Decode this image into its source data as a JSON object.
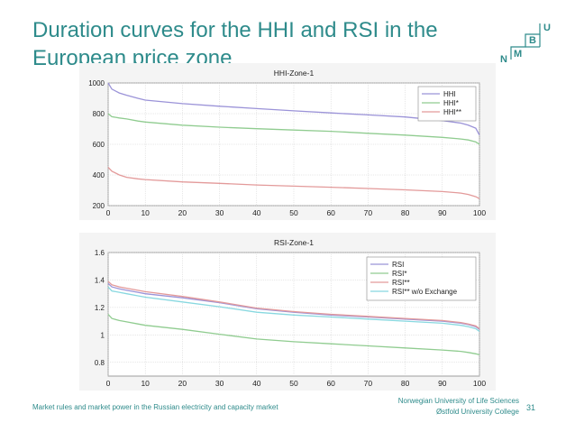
{
  "slide": {
    "title_line1": "Duration curves for the HHI and RSI in the",
    "title_line2": "European price zone",
    "footer_left": "Market rules and market power in the Russian electricity and capacity market",
    "footer_right_line1": "Norwegian University of Life Sciences",
    "footer_right_line2": "Østfold  University College",
    "page_number": "31"
  },
  "logo": {
    "letters": [
      "U",
      "B",
      "M",
      "N"
    ],
    "color": "#2e8b8b"
  },
  "chart_data": [
    {
      "type": "line",
      "title": "HHI-Zone-1",
      "xlabel": "",
      "ylabel": "",
      "xlim": [
        0,
        100
      ],
      "ylim": [
        200,
        1000
      ],
      "xticks": [
        0,
        10,
        20,
        30,
        40,
        50,
        60,
        70,
        80,
        90,
        100
      ],
      "yticks": [
        200,
        400,
        600,
        800,
        1000
      ],
      "grid": true,
      "legend_position": "top-right",
      "x": [
        0,
        1,
        3,
        5,
        8,
        10,
        20,
        30,
        40,
        50,
        60,
        70,
        80,
        90,
        95,
        97,
        99,
        100
      ],
      "series": [
        {
          "name": "HHI",
          "color": "#9b93d8",
          "values": [
            1000,
            960,
            935,
            920,
            900,
            888,
            865,
            848,
            833,
            818,
            805,
            792,
            778,
            755,
            738,
            725,
            705,
            660
          ]
        },
        {
          "name": "HHI*",
          "color": "#90cc90",
          "values": [
            800,
            780,
            772,
            765,
            752,
            745,
            725,
            712,
            702,
            693,
            685,
            672,
            660,
            645,
            635,
            628,
            615,
            600
          ]
        },
        {
          "name": "HHI**",
          "color": "#e39a9a",
          "values": [
            450,
            425,
            400,
            385,
            375,
            370,
            355,
            345,
            335,
            327,
            320,
            312,
            303,
            292,
            282,
            273,
            258,
            245
          ]
        }
      ]
    },
    {
      "type": "line",
      "title": "RSI-Zone-1",
      "xlabel": "",
      "ylabel": "",
      "xlim": [
        0,
        100
      ],
      "ylim": [
        0.7,
        1.6
      ],
      "xticks": [
        0,
        10,
        20,
        30,
        40,
        50,
        60,
        70,
        80,
        90,
        100
      ],
      "yticks": [
        0.8,
        1,
        1.2,
        1.4,
        1.6
      ],
      "grid": true,
      "legend_position": "top-right",
      "x": [
        0,
        1,
        3,
        5,
        8,
        10,
        20,
        30,
        40,
        50,
        60,
        70,
        80,
        90,
        95,
        97,
        99,
        100
      ],
      "series": [
        {
          "name": "RSI",
          "color": "#9b93d8",
          "values": [
            1.375,
            1.35,
            1.335,
            1.325,
            1.31,
            1.3,
            1.27,
            1.235,
            1.19,
            1.165,
            1.145,
            1.13,
            1.115,
            1.1,
            1.085,
            1.075,
            1.06,
            1.04
          ]
        },
        {
          "name": "RSI*",
          "color": "#90cc90",
          "values": [
            1.15,
            1.12,
            1.105,
            1.095,
            1.08,
            1.07,
            1.04,
            1.005,
            0.97,
            0.95,
            0.935,
            0.92,
            0.905,
            0.89,
            0.88,
            0.872,
            0.862,
            0.855
          ]
        },
        {
          "name": "RSI**",
          "color": "#e39a9a",
          "values": [
            1.39,
            1.365,
            1.35,
            1.34,
            1.325,
            1.315,
            1.28,
            1.24,
            1.195,
            1.17,
            1.15,
            1.135,
            1.12,
            1.105,
            1.09,
            1.08,
            1.065,
            1.045
          ]
        },
        {
          "name": "RSI** w/o Exchange",
          "color": "#88d8e0",
          "values": [
            1.35,
            1.32,
            1.31,
            1.3,
            1.285,
            1.275,
            1.24,
            1.205,
            1.165,
            1.145,
            1.13,
            1.115,
            1.1,
            1.085,
            1.07,
            1.06,
            1.045,
            1.025
          ]
        }
      ]
    }
  ]
}
